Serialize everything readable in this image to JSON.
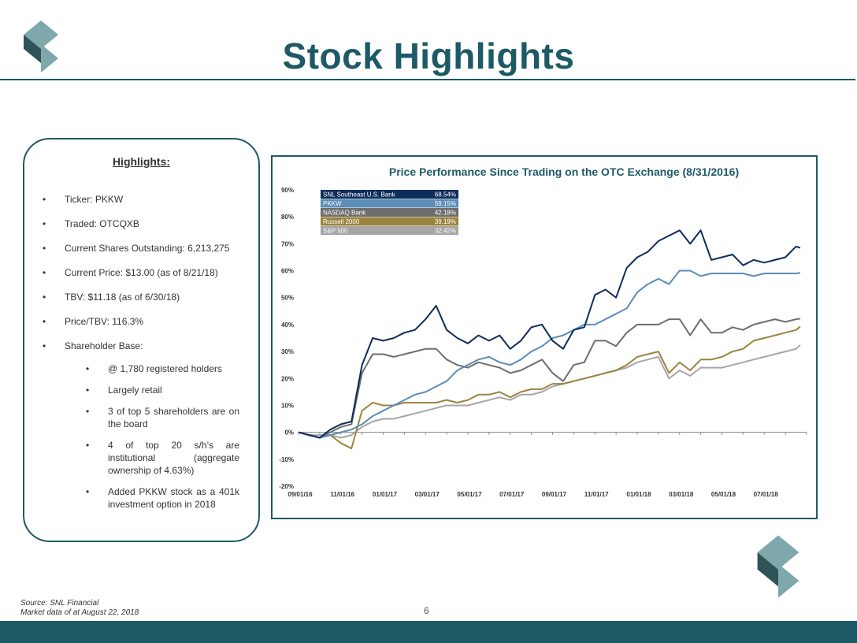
{
  "slide": {
    "title": "Stock Highlights",
    "page_number": "6",
    "source_lines": [
      "Source: SNL Financial",
      "Market data of at August 22, 2018"
    ],
    "colors": {
      "brand": "#1d5a66",
      "logo_light": "#7fa8ad",
      "logo_dark": "#2f5458"
    }
  },
  "highlights": {
    "title": "Highlights:",
    "items": [
      "Ticker:  PKKW",
      "Traded:  OTCQXB",
      "Current Shares Outstanding: 6,213,275",
      "Current Price: $13.00 (as of 8/21/18)",
      "TBV: $11.18 (as of 6/30/18)",
      "Price/TBV: 116.3%",
      "Shareholder Base:"
    ],
    "sub_items": [
      "@ 1,780 registered holders",
      "Largely retail",
      "3 of top 5 shareholders are on the board",
      "4 of top 20 s/h’s are institutional (aggregate ownership of 4.63%)",
      "Added PKKW stock as a 401k investment option in 2018"
    ]
  },
  "chart_data": {
    "type": "line",
    "title": "Price Performance Since Trading on the OTC Exchange (8/31/2016)",
    "xlabel": "",
    "ylabel": "",
    "ylim": [
      -20,
      90
    ],
    "yticks": [
      "90%",
      "80%",
      "70%",
      "60%",
      "50%",
      "40%",
      "30%",
      "20%",
      "10%",
      "0%",
      "-10%",
      "-20%"
    ],
    "xtick_labels": [
      "09/01/16",
      "11/01/16",
      "01/01/17",
      "03/01/17",
      "05/01/17",
      "07/01/17",
      "09/01/17",
      "11/01/17",
      "01/01/18",
      "03/01/18",
      "05/01/18",
      "07/01/18"
    ],
    "x_range_months": [
      0,
      24
    ],
    "legend_position": "top-left",
    "grid": false,
    "x_months": [
      0,
      0.5,
      1,
      1.5,
      2,
      2.5,
      3,
      3.5,
      4,
      4.5,
      5,
      5.5,
      6,
      6.5,
      7,
      7.5,
      8,
      8.5,
      9,
      9.5,
      10,
      10.5,
      11,
      11.5,
      12,
      12.5,
      13,
      13.5,
      14,
      14.5,
      15,
      15.5,
      16,
      16.5,
      17,
      17.5,
      18,
      18.5,
      19,
      19.5,
      20,
      20.5,
      21,
      21.5,
      22,
      22.5,
      23,
      23.5,
      23.7
    ],
    "series": [
      {
        "name": "SNL Southeast U.S. Bank",
        "value_label": "68.54%",
        "color": "#0d2d5a",
        "values": [
          0,
          -1,
          -2,
          1,
          3,
          4,
          25,
          35,
          34,
          35,
          37,
          38,
          42,
          47,
          38,
          35,
          33,
          36,
          34,
          36,
          31,
          34,
          39,
          40,
          34,
          31,
          38,
          39,
          51,
          53,
          50,
          61,
          65,
          67,
          71,
          73,
          75,
          70,
          75,
          64,
          65,
          66,
          62,
          64,
          63,
          64,
          65,
          69,
          68.5
        ]
      },
      {
        "name": "PKKW",
        "value_label": "59.15%",
        "color": "#5b8db5",
        "values": [
          0,
          -1,
          -2,
          -1,
          0,
          1,
          3,
          6,
          8,
          10,
          12,
          14,
          15,
          17,
          19,
          23,
          25,
          27,
          28,
          26,
          25,
          27,
          30,
          32,
          35,
          36,
          38,
          40,
          40,
          42,
          44,
          46,
          52,
          55,
          57,
          55,
          60,
          60,
          58,
          59,
          59,
          59,
          59,
          58,
          59,
          59,
          59,
          59,
          59.2
        ]
      },
      {
        "name": "NASDAQ Bank",
        "value_label": "42.18%",
        "color": "#6e6e6e",
        "values": [
          0,
          -1,
          -2,
          0,
          2,
          3,
          22,
          29,
          29,
          28,
          29,
          30,
          31,
          31,
          27,
          25,
          24,
          26,
          25,
          24,
          22,
          23,
          25,
          27,
          22,
          19,
          25,
          26,
          34,
          34,
          32,
          37,
          40,
          40,
          40,
          42,
          42,
          36,
          42,
          37,
          37,
          39,
          38,
          40,
          41,
          42,
          41,
          42,
          42.2
        ]
      },
      {
        "name": "Russell 2000",
        "value_label": "39.19%",
        "color": "#9c8440",
        "values": [
          0,
          -1,
          -2,
          -1,
          -4,
          -6,
          8,
          11,
          10,
          10,
          11,
          11,
          11,
          11,
          12,
          11,
          12,
          14,
          14,
          15,
          13,
          15,
          16,
          16,
          18,
          18,
          19,
          20,
          21,
          22,
          23,
          25,
          28,
          29,
          30,
          22,
          26,
          23,
          27,
          27,
          28,
          30,
          31,
          34,
          35,
          36,
          37,
          38,
          39.2
        ]
      },
      {
        "name": "S&P 500",
        "value_label": "32.42%",
        "color": "#a6a6a6",
        "values": [
          0,
          -1,
          -1,
          -1,
          -2,
          -1,
          2,
          4,
          5,
          5,
          6,
          7,
          8,
          9,
          10,
          10,
          10,
          11,
          12,
          13,
          12,
          14,
          14,
          15,
          17,
          18,
          19,
          20,
          21,
          22,
          23,
          24,
          26,
          27,
          28,
          20,
          23,
          21,
          24,
          24,
          24,
          25,
          26,
          27,
          28,
          29,
          30,
          31,
          32.4
        ]
      }
    ]
  }
}
